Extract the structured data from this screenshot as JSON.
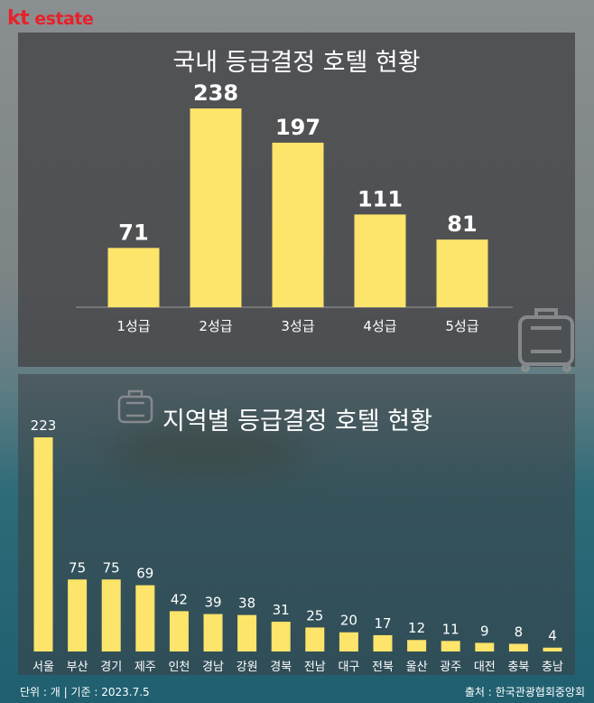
{
  "brand": {
    "logo_text_kt": "kt",
    "logo_text_estate": "estate",
    "brand_color": "#e8202a"
  },
  "colors": {
    "bar": "#fde46a",
    "panel": "#464648",
    "text": "#ffffff"
  },
  "icons": [
    "suitcase-icon",
    "suitcase-icon"
  ],
  "chart_data": [
    {
      "type": "bar",
      "title": "국내 등급결정 호텔 현황",
      "categories": [
        "1성급",
        "2성급",
        "3성급",
        "4성급",
        "5성급"
      ],
      "values": [
        71,
        238,
        197,
        111,
        81
      ],
      "ylim": [
        0,
        250
      ],
      "grid": false
    },
    {
      "type": "bar",
      "title": "지역별 등급결정 호텔 현황",
      "categories": [
        "서울",
        "부산",
        "경기",
        "제주",
        "인천",
        "경남",
        "강원",
        "경북",
        "전남",
        "대구",
        "전북",
        "울산",
        "광주",
        "대전",
        "충북",
        "충남"
      ],
      "values": [
        223,
        75,
        75,
        69,
        42,
        39,
        38,
        31,
        25,
        20,
        17,
        12,
        11,
        9,
        8,
        4
      ],
      "ylim": [
        0,
        230
      ],
      "grid": false
    }
  ],
  "footer": {
    "unit_date": "단위 : 개  |  기준 : 2023.7.5",
    "source": "출처 : 한국관광협회중앙회"
  }
}
